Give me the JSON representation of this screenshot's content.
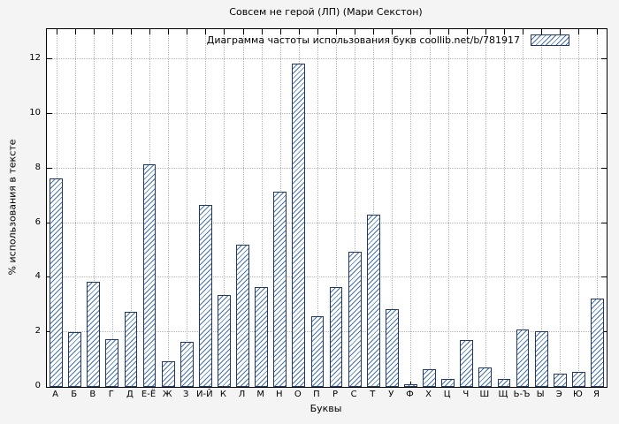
{
  "chart_data": {
    "type": "bar",
    "title": "Совсем не герой (ЛП) (Мари Секстон)",
    "legend": "Диаграмма частоты использования букв coollib.net/b/781917",
    "xlabel": "Буквы",
    "ylabel": "% использования в тексте",
    "categories": [
      "А",
      "Б",
      "В",
      "Г",
      "Д",
      "Е-Ё",
      "Ж",
      "З",
      "И-Й",
      "К",
      "Л",
      "М",
      "Н",
      "О",
      "П",
      "Р",
      "С",
      "Т",
      "У",
      "Ф",
      "Х",
      "Ц",
      "Ч",
      "Ш",
      "Щ",
      "Ь-Ъ",
      "Ы",
      "Э",
      "Ю",
      "Я"
    ],
    "values": [
      7.65,
      2.0,
      3.85,
      1.75,
      2.75,
      8.15,
      0.95,
      1.65,
      6.65,
      3.35,
      5.2,
      3.65,
      7.15,
      11.85,
      2.6,
      3.65,
      4.95,
      6.3,
      2.85,
      0.1,
      0.65,
      0.3,
      1.7,
      0.7,
      0.3,
      2.1,
      2.05,
      0.5,
      0.55,
      3.25
    ],
    "ylim": [
      0,
      13.1
    ],
    "yticks": [
      0,
      2,
      4,
      6,
      8,
      10,
      12
    ],
    "grid": true,
    "legend_position": "top-right",
    "colors": {
      "bar_hatch": "#4672b4",
      "bar_border": "#1f3864",
      "grid": "#b4b4b4",
      "plot_background": "#ffffff",
      "page_background": "#f4f4f4"
    }
  }
}
